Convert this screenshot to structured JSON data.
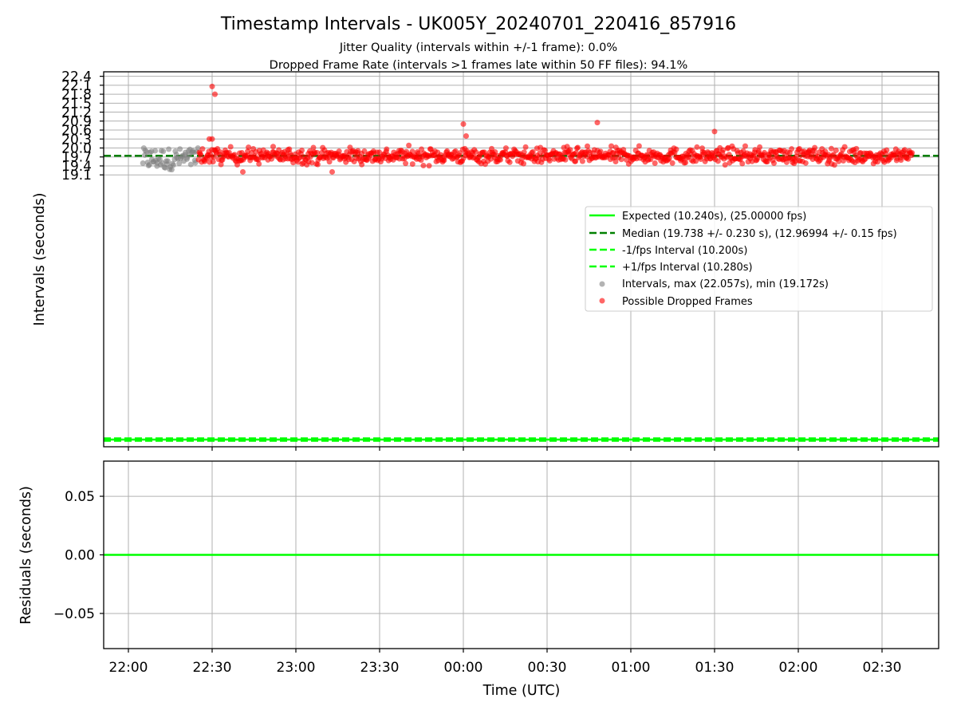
{
  "chart_data": {
    "title": "Timestamp Intervals - UK005Y_20240701_220416_857916",
    "subtitle_1": "Jitter Quality (intervals within +/-1 frame): 0.0%",
    "subtitle_2": "Dropped Frame Rate (intervals >1 frames late within 50 FF files): 94.1%",
    "x_label": "Time (UTC)",
    "x_ticks": [
      "22:00",
      "22:30",
      "23:00",
      "23:30",
      "00:00",
      "00:30",
      "01:00",
      "01:30",
      "02:00",
      "02:30"
    ],
    "top_panel": {
      "type": "scatter",
      "y_label": "Intervals (seconds)",
      "y_ticks": [
        "19.1",
        "19.4",
        "19.7",
        "20.0",
        "20.3",
        "20.6",
        "20.9",
        "21.2",
        "21.5",
        "21.8",
        "22.1",
        "22.4"
      ],
      "y_tick_values": [
        19.1,
        19.4,
        19.7,
        20.0,
        20.3,
        20.6,
        20.9,
        21.2,
        21.5,
        21.8,
        22.1,
        22.4
      ],
      "ylim": [
        10.0,
        22.55
      ],
      "grid": "y",
      "legend_position": "center-right",
      "lines": [
        {
          "name": "Expected (10.240s), (25.00000 fps)",
          "value": 10.24,
          "color": "#00ff00",
          "style": "solid"
        },
        {
          "name": "Median (19.738 +/- 0.230 s), (12.96994 +/- 0.15 fps)",
          "value": 19.738,
          "color": "#008000",
          "style": "dashed"
        },
        {
          "name": "-1/fps Interval (10.200s)",
          "value": 10.2,
          "color": "#00ff00",
          "style": "dashed"
        },
        {
          "name": "+1/fps Interval (10.280s)",
          "value": 10.28,
          "color": "#00ff00",
          "style": "dashed"
        }
      ],
      "scatter_series": [
        {
          "name": "Intervals, max (22.057s), min (19.172s)",
          "color": "#808080",
          "x_range": [
            "22:05",
            "22:25"
          ],
          "y_min": 19.17,
          "y_max": 20.0,
          "count": 60
        },
        {
          "name": "Possible Dropped Frames",
          "color": "#ff0000",
          "x_range": [
            "22:25",
            "02:41"
          ],
          "y_min": 19.17,
          "y_max": 22.06,
          "count": 900,
          "outliers": [
            {
              "x": "22:30",
              "y": 22.06
            },
            {
              "x": "22:31",
              "y": 21.8
            },
            {
              "x": "22:29",
              "y": 20.3
            },
            {
              "x": "22:30",
              "y": 20.3
            },
            {
              "x": "00:00",
              "y": 20.8
            },
            {
              "x": "00:01",
              "y": 20.4
            },
            {
              "x": "00:48",
              "y": 20.85
            },
            {
              "x": "01:30",
              "y": 20.55
            },
            {
              "x": "22:41",
              "y": 19.2
            },
            {
              "x": "23:13",
              "y": 19.2
            }
          ]
        }
      ]
    },
    "bottom_panel": {
      "type": "line",
      "y_label": "Residuals (seconds)",
      "y_ticks": [
        "0.05",
        "0.00",
        "−0.05"
      ],
      "y_tick_values": [
        0.05,
        0.0,
        -0.05
      ],
      "ylim": [
        -0.08,
        0.08
      ],
      "grid": "both",
      "line": {
        "value": 0.0,
        "color": "#00ff00"
      }
    }
  }
}
